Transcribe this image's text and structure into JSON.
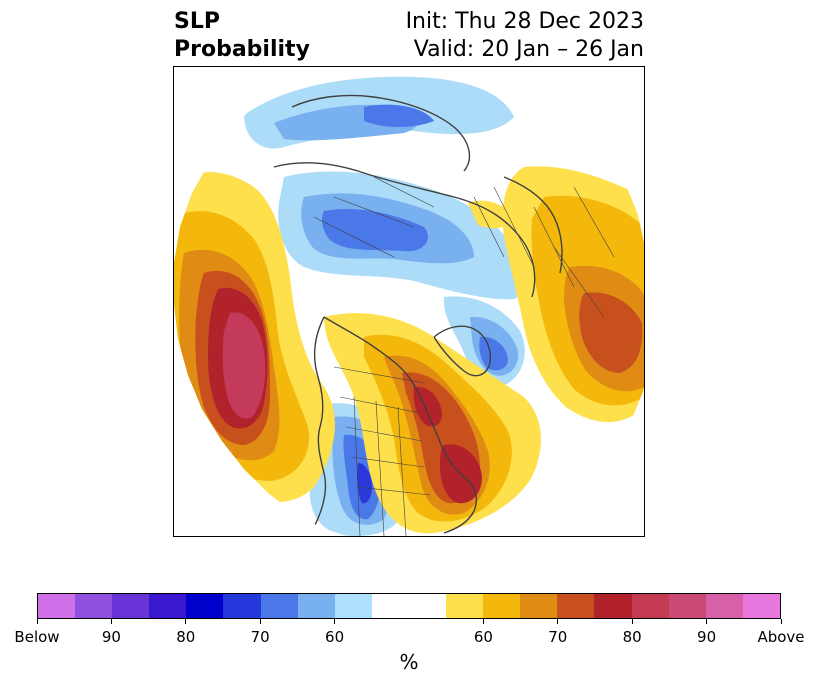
{
  "title": {
    "left_line1": "SLP",
    "left_line2": "Probability",
    "right_line1": "Init: Thu 28 Dec 2023",
    "right_line2": "Valid: 20 Jan – 26 Jan"
  },
  "map": {
    "projection": "north polar stereographic",
    "features": [
      "coastlines",
      "country borders",
      "US state borders"
    ],
    "colors": {
      "below_90_plus": "#7040d8",
      "below_80": "#2a38d8",
      "below_70": "#4a78e8",
      "below_60": "#78b0f0",
      "below_50": "#acdcf8",
      "neutral": "#ffffff",
      "above_50": "#fde04c",
      "above_60": "#f4b80c",
      "above_70": "#e08c14",
      "above_80": "#c8501c",
      "above_90": "#b2222a",
      "above_max": "#c43a5a"
    }
  },
  "colorbar": {
    "segments": [
      {
        "color": "#d070e8"
      },
      {
        "color": "#9050e0"
      },
      {
        "color": "#6834d8"
      },
      {
        "color": "#3a18d0"
      },
      {
        "color": "#0000cc"
      },
      {
        "color": "#2438dc"
      },
      {
        "color": "#4a78e8"
      },
      {
        "color": "#78b0f0"
      },
      {
        "color": "#ace0fc"
      },
      {
        "color": "#ffffff",
        "wide": true
      },
      {
        "color": "#fde04c"
      },
      {
        "color": "#f4b80c"
      },
      {
        "color": "#e08c14"
      },
      {
        "color": "#c8501c"
      },
      {
        "color": "#b2222a"
      },
      {
        "color": "#c43a50"
      },
      {
        "color": "#cc4a78"
      },
      {
        "color": "#d860a8"
      },
      {
        "color": "#e878e0"
      }
    ],
    "ticks": [
      "Below",
      "90",
      "80",
      "70",
      "60",
      "60",
      "70",
      "80",
      "90",
      "Above"
    ],
    "unit": "%"
  }
}
